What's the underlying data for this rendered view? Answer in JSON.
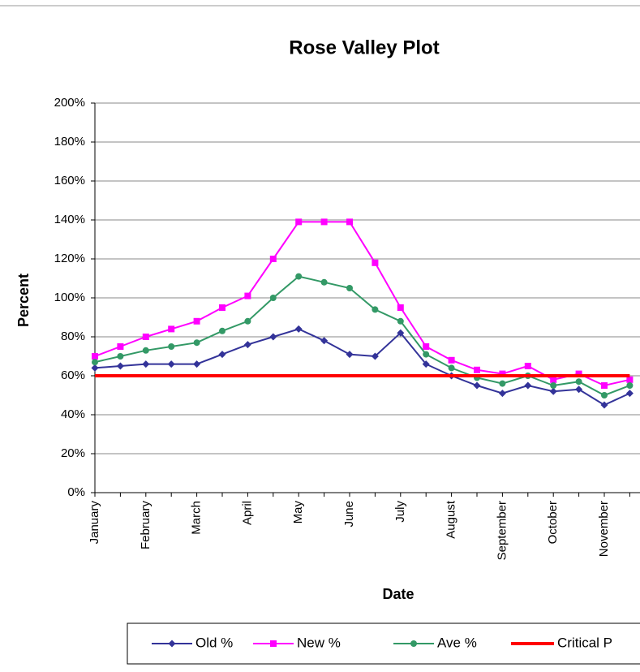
{
  "chart_data": {
    "type": "line",
    "title": "Rose Valley Plot",
    "x_label": "Date",
    "y_label": "Percent",
    "categories": [
      "January",
      null,
      "February",
      null,
      "March",
      null,
      "April",
      null,
      "May",
      null,
      "June",
      null,
      "July",
      null,
      "August",
      null,
      "September",
      null,
      "October",
      null,
      "November",
      null
    ],
    "series": [
      {
        "name": "Old %",
        "color": "#333399",
        "marker": "diamond",
        "values": [
          64,
          65,
          66,
          66,
          66,
          71,
          76,
          80,
          84,
          78,
          71,
          70,
          82,
          66,
          60,
          55,
          51,
          55,
          52,
          53,
          45,
          51
        ]
      },
      {
        "name": "New %",
        "color": "#ff00ff",
        "marker": "square",
        "values": [
          70,
          75,
          80,
          84,
          88,
          95,
          101,
          120,
          139,
          139,
          139,
          118,
          95,
          75,
          68,
          63,
          61,
          65,
          58,
          61,
          55,
          58
        ]
      },
      {
        "name": "Ave %",
        "color": "#339966",
        "marker": "circle",
        "values": [
          67,
          70,
          73,
          75,
          77,
          83,
          88,
          100,
          111,
          108,
          105,
          94,
          88,
          71,
          64,
          59,
          56,
          60,
          55,
          57,
          50,
          55
        ]
      },
      {
        "name": "Critical P",
        "color": "#ff0000",
        "marker": "none",
        "values": [
          60,
          60,
          60,
          60,
          60,
          60,
          60,
          60,
          60,
          60,
          60,
          60,
          60,
          60,
          60,
          60,
          60,
          60,
          60,
          60,
          60,
          60
        ]
      }
    ],
    "ylim": [
      0,
      200
    ],
    "yticks": [
      {
        "value": 0,
        "label": "0%"
      },
      {
        "value": 20,
        "label": "20%"
      },
      {
        "value": 40,
        "label": "40%"
      },
      {
        "value": 60,
        "label": "60%"
      },
      {
        "value": 80,
        "label": "80%"
      },
      {
        "value": 100,
        "label": "100%"
      },
      {
        "value": 120,
        "label": "120%"
      },
      {
        "value": 140,
        "label": "140%"
      },
      {
        "value": 160,
        "label": "160%"
      },
      {
        "value": 180,
        "label": "180%"
      },
      {
        "value": 200,
        "label": "200%"
      }
    ],
    "grid": true,
    "legend": "bottom"
  }
}
